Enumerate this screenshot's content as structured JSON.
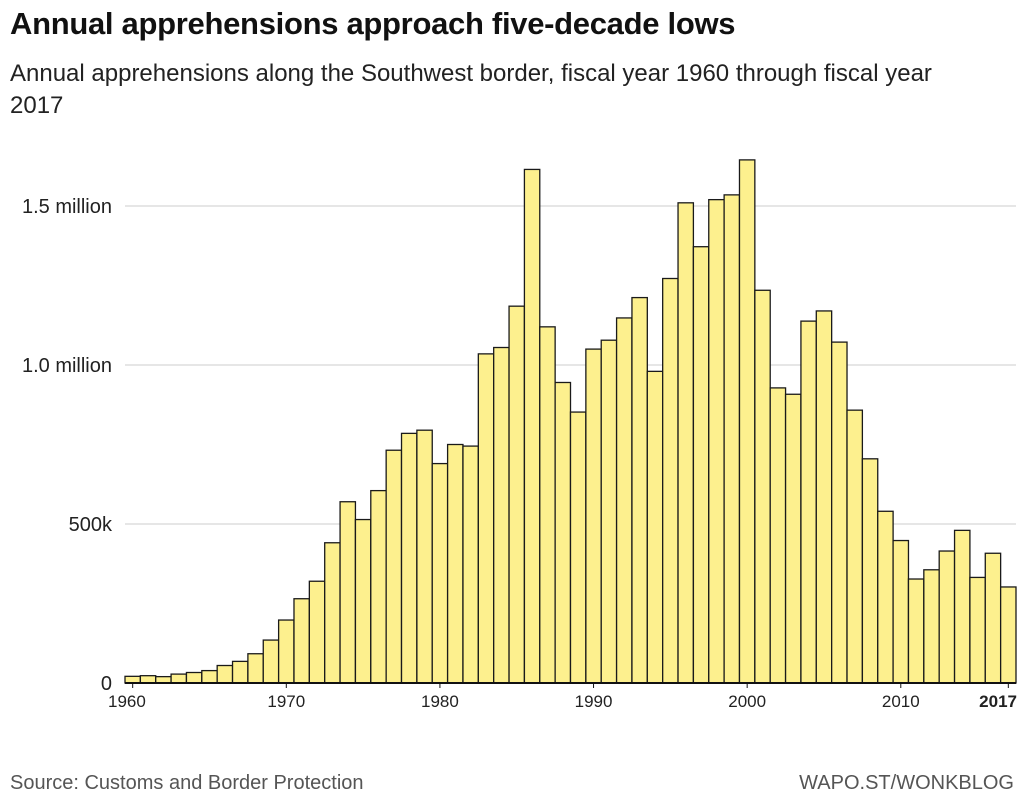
{
  "header": {
    "title": "Annual apprehensions approach five-decade lows",
    "subtitle": "Annual apprehensions along the Southwest border, fiscal year 1960 through fiscal year 2017"
  },
  "footer": {
    "source": "Source: Customs and Border Protection",
    "credit": "WAPO.ST/WONKBLOG"
  },
  "colors": {
    "bar_fill": "#fdf08e",
    "bar_stroke": "#1a1a1a",
    "grid": "#cccccc",
    "axis": "#111111"
  },
  "chart_data": {
    "type": "bar",
    "title": "Annual apprehensions approach five-decade lows",
    "subtitle": "Annual apprehensions along the Southwest border, fiscal year 1960 through fiscal year 2017",
    "xlabel": "",
    "ylabel": "",
    "ylim": [
      0,
      1700000
    ],
    "grid": true,
    "y_ticks": [
      {
        "value": 0,
        "label": "0"
      },
      {
        "value": 500000,
        "label": "500k"
      },
      {
        "value": 1000000,
        "label": "1.0 million"
      },
      {
        "value": 1500000,
        "label": "1.5 million"
      }
    ],
    "x_ticks": [
      {
        "value": 1960,
        "label": "1960",
        "bold": false
      },
      {
        "value": 1970,
        "label": "1970",
        "bold": false
      },
      {
        "value": 1980,
        "label": "1980",
        "bold": false
      },
      {
        "value": 1990,
        "label": "1990",
        "bold": false
      },
      {
        "value": 2000,
        "label": "2000",
        "bold": false
      },
      {
        "value": 2010,
        "label": "2010",
        "bold": false
      },
      {
        "value": 2017,
        "label": "2017",
        "bold": true
      }
    ],
    "x": [
      1960,
      1961,
      1962,
      1963,
      1964,
      1965,
      1966,
      1967,
      1968,
      1969,
      1970,
      1971,
      1972,
      1973,
      1974,
      1975,
      1976,
      1977,
      1978,
      1979,
      1980,
      1981,
      1982,
      1983,
      1984,
      1985,
      1986,
      1987,
      1988,
      1989,
      1990,
      1991,
      1992,
      1993,
      1994,
      1995,
      1996,
      1997,
      1998,
      1999,
      2000,
      2001,
      2002,
      2003,
      2004,
      2005,
      2006,
      2007,
      2008,
      2009,
      2010,
      2011,
      2012,
      2013,
      2014,
      2015,
      2016,
      2017
    ],
    "values": [
      21000,
      23000,
      20000,
      28000,
      33000,
      39000,
      55000,
      68000,
      92000,
      135000,
      198000,
      265000,
      320000,
      441000,
      570000,
      514000,
      605000,
      732000,
      785000,
      795000,
      690000,
      750000,
      745000,
      1035000,
      1055000,
      1185000,
      1615000,
      1120000,
      945000,
      852000,
      1050000,
      1078000,
      1148000,
      1212000,
      980000,
      1272000,
      1510000,
      1372000,
      1520000,
      1535000,
      1645000,
      1235000,
      928000,
      908000,
      1138000,
      1170000,
      1072000,
      858000,
      705000,
      540000,
      448000,
      327000,
      356000,
      415000,
      480000,
      332000,
      408000,
      302000
    ]
  }
}
